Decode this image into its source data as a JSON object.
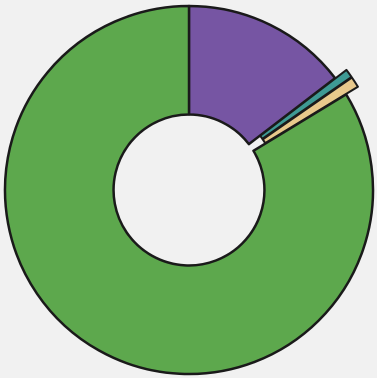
{
  "chart_data": {
    "type": "pie",
    "variant": "donut",
    "hole_ratio": 0.41,
    "start_angle_deg": 0,
    "direction": "clockwise",
    "stroke_color": "#1a1a1a",
    "slices": [
      {
        "value": 14.6,
        "color": "#7655a3",
        "exploded": false
      },
      {
        "value": 0.75,
        "color": "#3e9a94",
        "exploded": true
      },
      {
        "value": 0.95,
        "color": "#e8c98c",
        "exploded": true
      },
      {
        "value": 83.7,
        "color": "#5da84d",
        "exploded": false
      }
    ]
  },
  "colors": {
    "background": "#f1f1f1"
  }
}
